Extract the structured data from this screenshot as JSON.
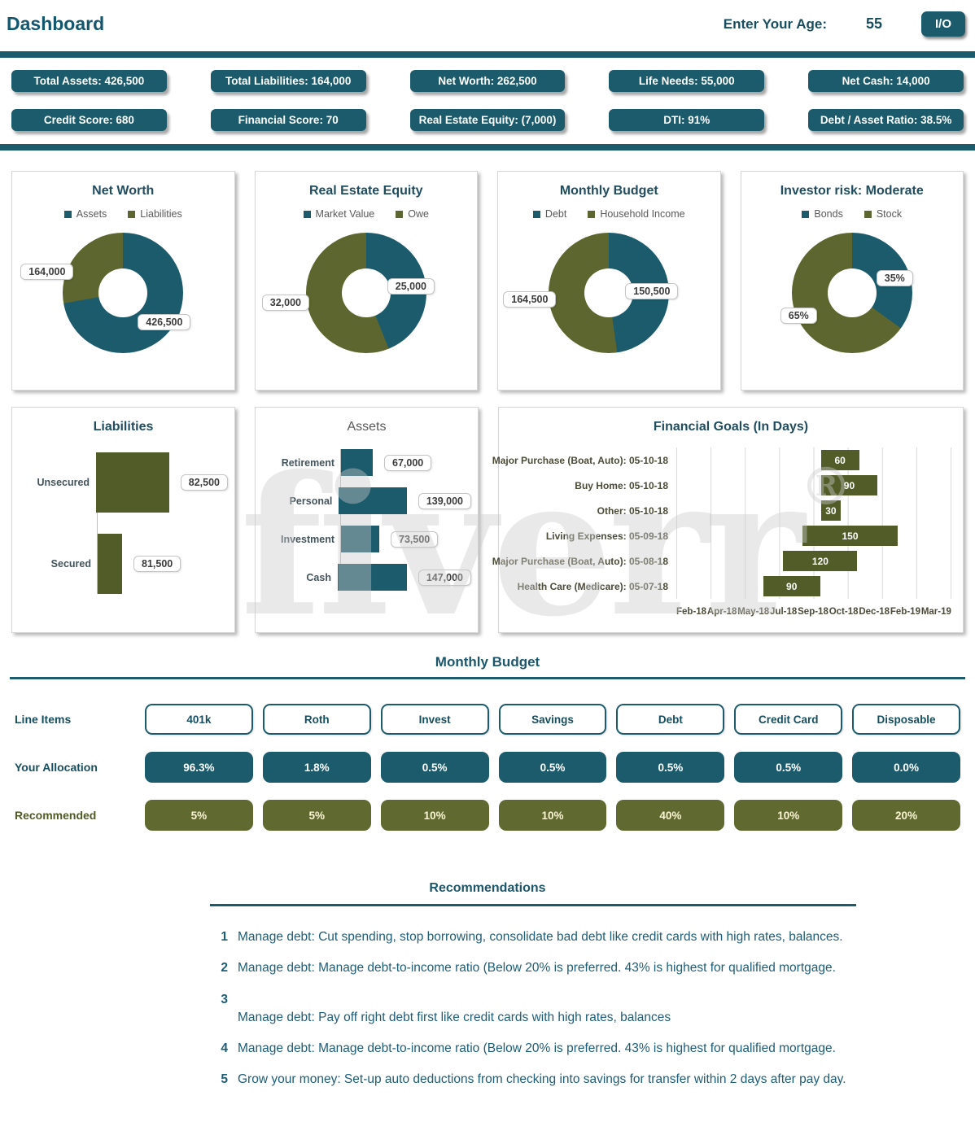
{
  "header": {
    "title": "Dashboard",
    "age_label": "Enter Your Age:",
    "age_value": "55",
    "io_button": "I/O"
  },
  "kpis": {
    "row1": [
      "Total Assets: 426,500",
      "Total Liabilities: 164,000",
      "Net Worth: 262,500",
      "Life Needs: 55,000",
      "Net Cash: 14,000"
    ],
    "row2": [
      "Credit Score: 680",
      "Financial Score: 70",
      "Real Estate Equity: (7,000)",
      "DTI: 91%",
      "Debt / Asset Ratio: 38.5%"
    ]
  },
  "chart_data": [
    {
      "type": "pie",
      "title": "Net Worth",
      "legend": [
        "Assets",
        "Liabilities"
      ],
      "series": [
        {
          "name": "Assets",
          "value": 426500
        },
        {
          "name": "Liabilities",
          "value": 164000
        }
      ]
    },
    {
      "type": "pie",
      "title": "Real Estate Equity",
      "legend": [
        "Market Value",
        "Owe"
      ],
      "series": [
        {
          "name": "Market Value",
          "value": 25000
        },
        {
          "name": "Owe",
          "value": 32000
        }
      ]
    },
    {
      "type": "pie",
      "title": "Monthly Budget",
      "legend": [
        "Debt",
        "Household Income"
      ],
      "series": [
        {
          "name": "Debt",
          "value": 150500
        },
        {
          "name": "Household Income",
          "value": 164500
        }
      ]
    },
    {
      "type": "pie",
      "title": "Investor risk: Moderate",
      "legend": [
        "Bonds",
        "Stock"
      ],
      "series": [
        {
          "name": "Bonds",
          "value": "35%"
        },
        {
          "name": "Stock",
          "value": "65%"
        }
      ]
    },
    {
      "type": "bar",
      "title": "Liabilities",
      "categories": [
        "Unsecured",
        "Secured"
      ],
      "values": [
        82500,
        81500
      ]
    },
    {
      "type": "bar",
      "title": "Assets",
      "categories": [
        "Retirement",
        "Personal",
        "Investment",
        "Cash"
      ],
      "values": [
        67000,
        139000,
        73500,
        147000
      ]
    },
    {
      "type": "bar",
      "title": "Financial Goals (In Days)",
      "categories": [
        "Major Purchase (Boat, Auto): 05-10-18",
        "Buy Home: 05-10-18",
        "Other: 05-10-18",
        "Living Expenses: 05-09-18",
        "Major Purchase (Boat, Auto): 05-08-18",
        "Health Care (Medicare): 05-07-18"
      ],
      "values": [
        60,
        90,
        30,
        150,
        120,
        90
      ],
      "x_axis": [
        "Feb-18",
        "Apr-18",
        "May-18",
        "Jul-18",
        "Sep-18",
        "Oct-18",
        "Dec-18",
        "Feb-19",
        "Mar-19"
      ]
    }
  ],
  "donuts": [
    {
      "title": "Net Worth",
      "leg1": "Assets",
      "leg2": "Liabilities",
      "call1": "164,000",
      "call2": "426,500"
    },
    {
      "title": "Real Estate Equity",
      "leg1": "Market Value",
      "leg2": "Owe",
      "call1": "25,000",
      "call2": "32,000"
    },
    {
      "title": "Monthly Budget",
      "leg1": "Debt",
      "leg2": "Household Income",
      "call1": "150,500",
      "call2": "164,500"
    },
    {
      "title": "Investor risk: Moderate",
      "leg1": "Bonds",
      "leg2": "Stock",
      "call1": "35%",
      "call2": "65%"
    }
  ],
  "liabilities": {
    "title": "Liabilities",
    "bars": [
      {
        "label": "Unsecured",
        "value": "82,500"
      },
      {
        "label": "Secured",
        "value": "81,500"
      }
    ]
  },
  "assets": {
    "title": "Assets",
    "bars": [
      {
        "label": "Retirement",
        "value": "67,000"
      },
      {
        "label": "Personal",
        "value": "139,000"
      },
      {
        "label": "Investment",
        "value": "73,500"
      },
      {
        "label": "Cash",
        "value": "147,000"
      }
    ]
  },
  "goals": {
    "title": "Financial Goals (In Days)",
    "bars": [
      {
        "label": "Major Purchase (Boat, Auto): 05-10-18",
        "value": "60"
      },
      {
        "label": "Buy Home: 05-10-18",
        "value": "90"
      },
      {
        "label": "Other: 05-10-18",
        "value": "30"
      },
      {
        "label": "Living Expenses: 05-09-18",
        "value": "150"
      },
      {
        "label": "Major Purchase (Boat, Auto): 05-08-18",
        "value": "120"
      },
      {
        "label": "Health Care (Medicare): 05-07-18",
        "value": "90"
      }
    ],
    "axis": [
      "Feb-18",
      "Apr-18",
      "May-18",
      "Jul-18",
      "Sep-18",
      "Oct-18",
      "Dec-18",
      "Feb-19",
      "Mar-19"
    ]
  },
  "budget": {
    "title": "Monthly Budget",
    "row1_label": "Line Items",
    "row2_label": "Your Allocation",
    "row3_label": "Recommended",
    "items": [
      "401k",
      "Roth",
      "Invest",
      "Savings",
      "Debt",
      "Credit Card",
      "Disposable"
    ],
    "allocation": [
      "96.3%",
      "1.8%",
      "0.5%",
      "0.5%",
      "0.5%",
      "0.5%",
      "0.0%"
    ],
    "recommended": [
      "5%",
      "5%",
      "10%",
      "10%",
      "40%",
      "10%",
      "20%"
    ]
  },
  "recommendations": {
    "title": "Recommendations",
    "items": [
      {
        "num": "1",
        "text": "Manage debt: Cut spending, stop borrowing, consolidate bad debt like credit cards with high rates, balances."
      },
      {
        "num": "2",
        "text": "Manage debt: Manage debt-to-income ratio (Below 20% is preferred. 43% is highest for qualified mortgage."
      },
      {
        "num": "3",
        "text": "Manage debt: Pay off right debt first like credit cards with high rates, balances"
      },
      {
        "num": "4",
        "text": "Manage debt: Manage debt-to-income ratio (Below 20% is preferred. 43% is highest for qualified mortgage."
      },
      {
        "num": "5",
        "text": "Grow your money: Set-up auto deductions from checking into savings for transfer within 2 days after pay day."
      }
    ]
  },
  "watermark": {
    "text": "fiverr",
    "reg": "®"
  },
  "colors": {
    "teal": "#1c5b6b",
    "olive": "#5d662e",
    "olive_bar": "#515c28"
  }
}
